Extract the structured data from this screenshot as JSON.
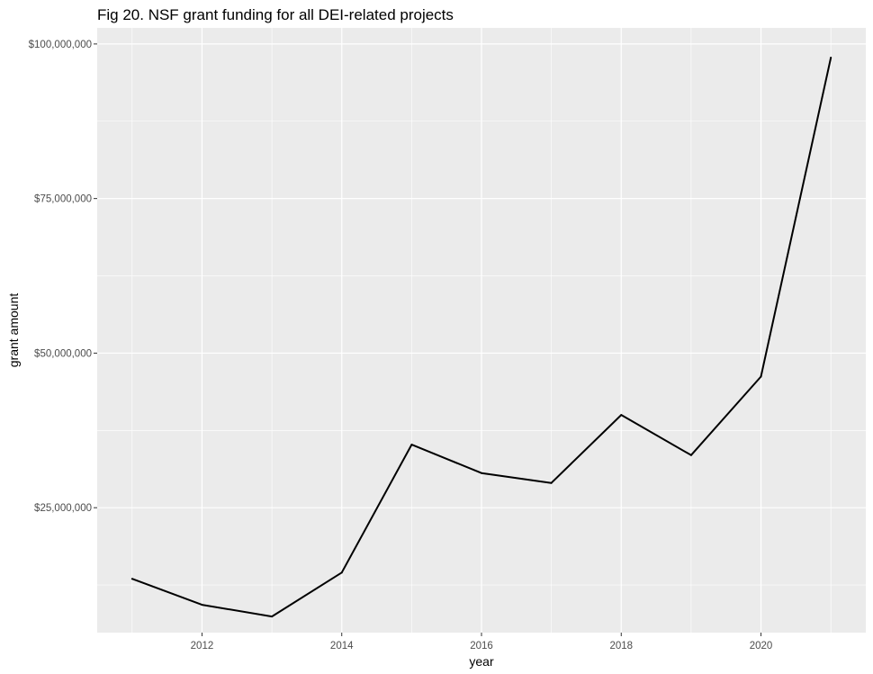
{
  "chart_data": {
    "type": "line",
    "title": "Fig 20. NSF grant funding for all DEI-related projects",
    "xlabel": "year",
    "ylabel": "grant amount",
    "x": [
      2011,
      2012,
      2013,
      2014,
      2015,
      2016,
      2017,
      2018,
      2019,
      2020,
      2021
    ],
    "series": [
      {
        "values": [
          13500000,
          9300000,
          7400000,
          14500000,
          35200000,
          30600000,
          29000000,
          40000000,
          33500000,
          46200000,
          97800000
        ],
        "color": "#000000"
      }
    ],
    "xlim": [
      2010.5,
      2021.5
    ],
    "ylim": [
      4800000,
      102600000
    ],
    "x_ticks": [
      2012,
      2014,
      2016,
      2018,
      2020
    ],
    "x_tick_labels": [
      "2012",
      "2014",
      "2016",
      "2018",
      "2020"
    ],
    "y_ticks": [
      25000000,
      50000000,
      75000000,
      100000000
    ],
    "y_tick_labels": [
      "$25,000,000",
      "$50,000,000",
      "$75,000,000",
      "$100,000,000"
    ],
    "grid": true,
    "panel_background": "#ebebeb",
    "grid_color": "#ffffff"
  }
}
